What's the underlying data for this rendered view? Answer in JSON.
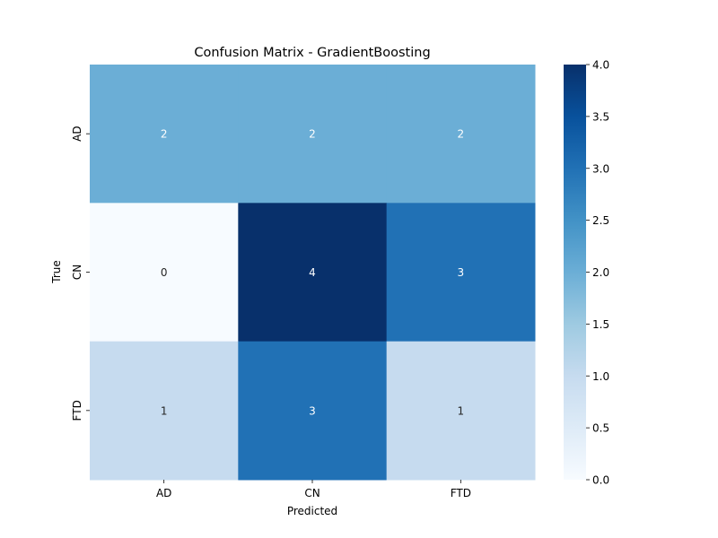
{
  "chart_data": {
    "type": "heatmap",
    "title": "Confusion Matrix - GradientBoosting",
    "xlabel": "Predicted",
    "ylabel": "True",
    "x_categories": [
      "AD",
      "CN",
      "FTD"
    ],
    "y_categories": [
      "AD",
      "CN",
      "FTD"
    ],
    "values": [
      [
        2,
        2,
        2
      ],
      [
        0,
        4,
        3
      ],
      [
        1,
        3,
        1
      ]
    ],
    "colormap": "Blues",
    "colorbar": {
      "range": [
        0.0,
        4.0
      ],
      "ticks": [
        "0.0",
        "0.5",
        "1.0",
        "1.5",
        "2.0",
        "2.5",
        "3.0",
        "3.5",
        "4.0"
      ]
    },
    "grid": false
  }
}
